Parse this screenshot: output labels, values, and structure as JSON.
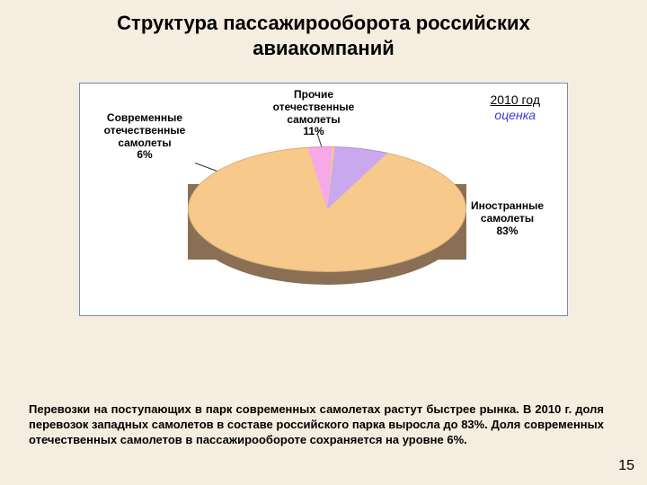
{
  "title_line1": "Структура пассажирооборота российских",
  "title_line2": "авиакомпаний",
  "chart": {
    "type": "pie",
    "note_year": "2010 год",
    "note_estimate": "оценка",
    "background_color": "#ffffff",
    "border_color": "#7a8aa8",
    "slices": [
      {
        "name": "Иностранные самолеты",
        "percent_text": "83%",
        "value": 83,
        "label_lines": [
          "Иностранные",
          "самолеты"
        ],
        "color": "#f7c98a",
        "side_color": "#8a6f55"
      },
      {
        "name": "Прочие отечественные самолеты",
        "percent_text": "11%",
        "value": 11,
        "label_lines": [
          "Прочие",
          "отечественные",
          "самолеты"
        ],
        "color": "#c9a8f0"
      },
      {
        "name": "Современные отечественные самолеты",
        "percent_text": "6%",
        "value": 6,
        "label_lines": [
          "Современные",
          "отечественные",
          "самолеты"
        ],
        "color": "#f7a8e8"
      }
    ],
    "label_fontsize": 12,
    "label_fontweight": "bold"
  },
  "body_text": "Перевозки на поступающих в парк современных самолетах растут быстрее рынка. В 2010 г. доля перевозок западных самолетов в составе российского парка выросла до 83%. Доля современных отечественных самолетов в пассажирообороте сохраняется на уровне 6%.",
  "page_number": "15",
  "page_bg": "#f5eee0"
}
